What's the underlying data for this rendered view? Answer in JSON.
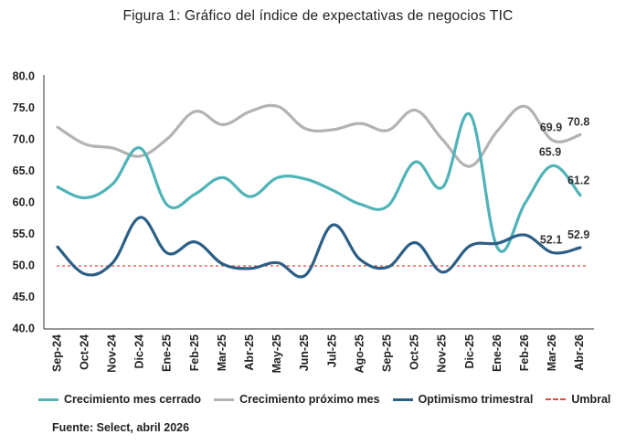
{
  "title": "Figura 1: Gráfico del índice de expectativas de negocios TIC",
  "source": "Fuente: Select, abril 2026",
  "chart_data": {
    "type": "line",
    "categories": [
      "Sep-24",
      "Oct-24",
      "Nov-24",
      "Dic-24",
      "Ene-25",
      "Feb-25",
      "Mar-25",
      "Abr-25",
      "May-25",
      "Jun-25",
      "Jul-25",
      "Ago-25",
      "Sep-25",
      "Oct-25",
      "Nov-25",
      "Dic-25",
      "Ene-26",
      "Feb-26",
      "Mar-26",
      "Abr-26"
    ],
    "ylim": [
      40,
      80
    ],
    "yticks": [
      "40.0",
      "45.0",
      "50.0",
      "55.0",
      "60.0",
      "65.0",
      "70.0",
      "75.0",
      "80.0"
    ],
    "grid": false,
    "legend_position": "bottom",
    "series": [
      {
        "name": "Crecimiento mes cerrado",
        "color": "#4fb3b8",
        "values": [
          62.5,
          60.8,
          63.0,
          68.7,
          59.6,
          61.4,
          64.0,
          61.0,
          64.0,
          63.8,
          62.0,
          59.8,
          59.5,
          66.5,
          62.5,
          74.0,
          52.8,
          60.0,
          65.9,
          61.2
        ],
        "labels": {
          "18": "65.9",
          "19": "61.2"
        }
      },
      {
        "name": "Crecimiento próximo mes",
        "color": "#b3b3b3",
        "values": [
          72.0,
          69.3,
          68.7,
          67.4,
          70.2,
          74.5,
          72.4,
          74.5,
          75.3,
          71.8,
          71.6,
          72.6,
          71.5,
          74.7,
          70.0,
          65.8,
          71.5,
          75.3,
          69.9,
          70.8
        ],
        "labels": {
          "18": "69.9",
          "19": "70.8"
        }
      },
      {
        "name": "Optimismo trimestral",
        "color": "#2c5f86",
        "values": [
          53.0,
          48.7,
          50.5,
          57.7,
          52.0,
          53.8,
          50.3,
          49.6,
          50.5,
          48.5,
          56.5,
          51.0,
          49.8,
          53.7,
          49.0,
          53.2,
          53.6,
          54.9,
          52.1,
          52.9
        ],
        "labels": {
          "18": "52.1",
          "19": "52.9"
        }
      },
      {
        "name": "Umbral",
        "color": "#e04a3a",
        "dashed": true,
        "values": [
          50,
          50,
          50,
          50,
          50,
          50,
          50,
          50,
          50,
          50,
          50,
          50,
          50,
          50,
          50,
          50,
          50,
          50,
          50,
          50
        ]
      }
    ]
  }
}
